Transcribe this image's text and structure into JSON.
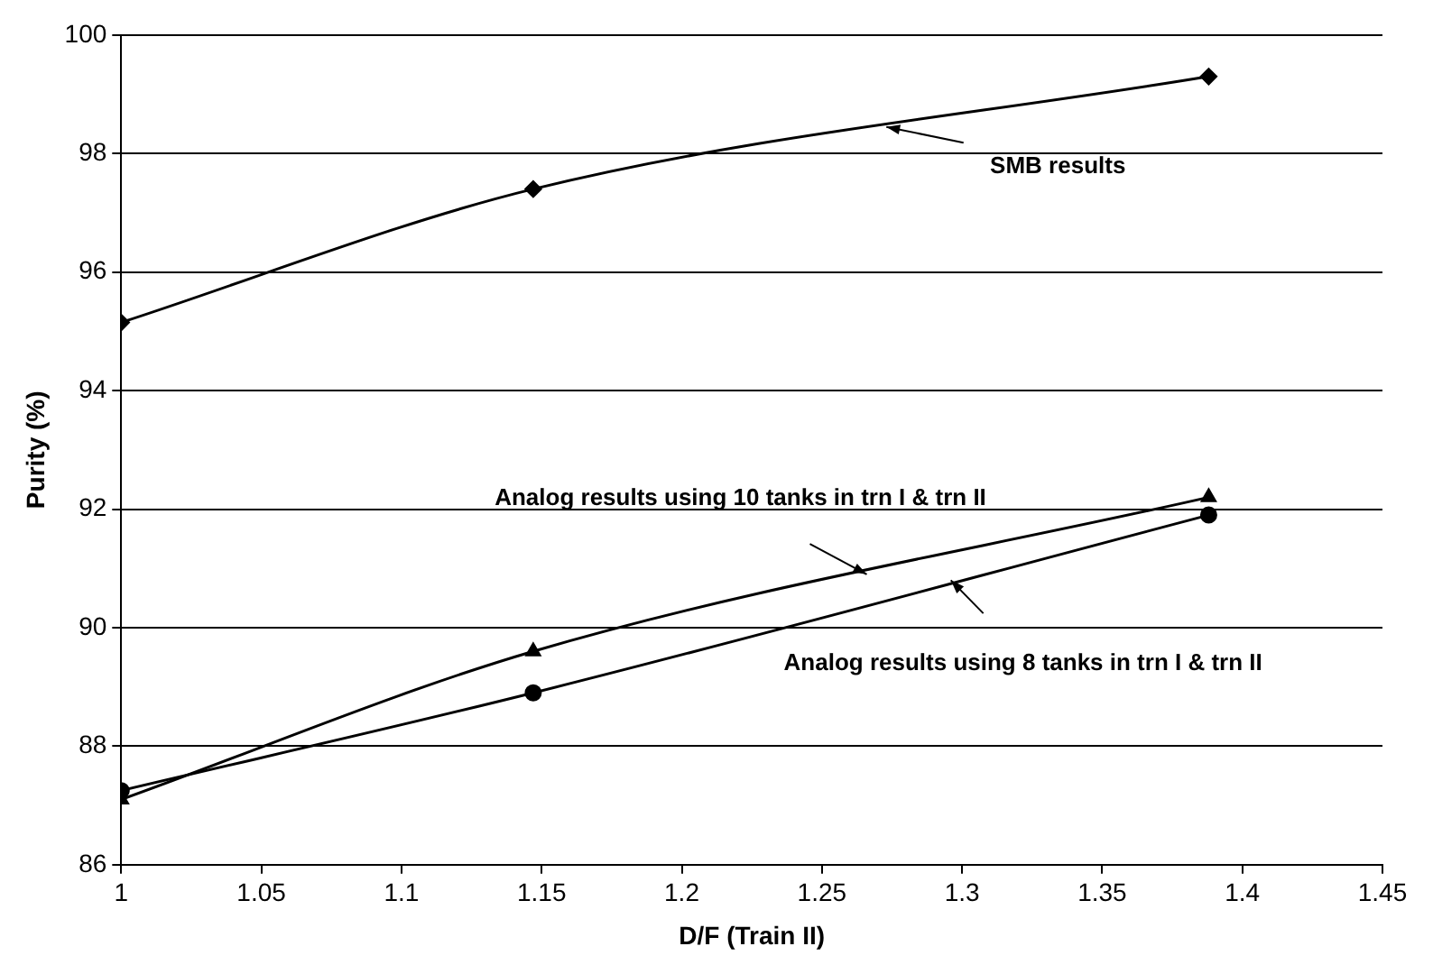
{
  "chart_data": {
    "type": "line",
    "xlabel": "D/F (Train II)",
    "ylabel": "Purity (%)",
    "x": [
      1,
      1.147,
      1.388
    ],
    "series": [
      {
        "color": "#000000",
        "marker": "diamond",
        "values": [
          95.15,
          97.4,
          99.3
        ]
      },
      {
        "color": "#000000",
        "marker": "triangle",
        "values": [
          87.1,
          89.6,
          92.2
        ]
      },
      {
        "color": "#000000",
        "marker": "circle",
        "values": [
          87.25,
          88.9,
          91.9
        ]
      }
    ],
    "xlim": [
      1,
      1.45
    ],
    "xticks": [
      1,
      1.05,
      1.1,
      1.15,
      1.2,
      1.25,
      1.3,
      1.35,
      1.4,
      1.45
    ],
    "ylim": [
      86,
      100
    ],
    "yticks": [
      86,
      88,
      90,
      92,
      94,
      96,
      98,
      100
    ],
    "grid": "y",
    "legend": false,
    "line_style": "solid",
    "annotations": [
      {
        "text": "SMB results",
        "x": 1.273,
        "y": 98.45
      },
      {
        "text": "Analog results using 10 tanks in trn I & trn II",
        "x": 1.266,
        "y": 90.9
      },
      {
        "text": "Analog results using 8 tanks in trn I & trn II",
        "x": 1.296,
        "y": 90.8
      }
    ]
  }
}
